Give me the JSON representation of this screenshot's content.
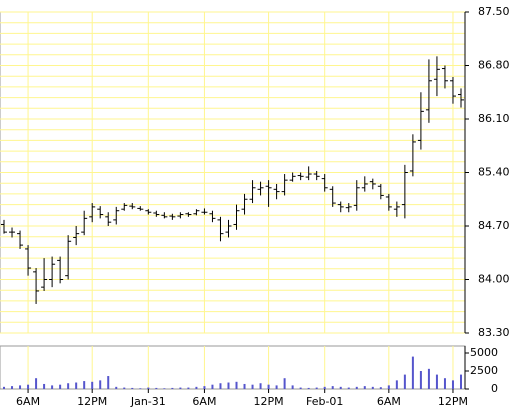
{
  "chart_data": [
    {
      "type": "ohlc",
      "x": [
        0,
        1,
        2,
        3,
        4,
        5,
        6,
        7,
        8,
        9,
        10,
        11,
        12,
        13,
        14,
        15,
        16,
        17,
        18,
        19,
        20,
        21,
        22,
        23,
        24,
        25,
        26,
        27,
        28,
        29,
        30,
        31,
        32,
        33,
        34,
        35,
        36,
        37,
        38,
        39,
        40,
        41,
        42,
        43,
        44,
        45,
        46,
        47,
        48,
        49,
        50,
        51,
        52,
        53,
        54,
        55,
        56,
        57
      ],
      "open": [
        84.72,
        84.62,
        84.6,
        84.4,
        84.1,
        83.9,
        84.0,
        84.25,
        84.05,
        84.55,
        84.62,
        84.82,
        84.92,
        84.82,
        84.78,
        84.92,
        84.96,
        84.93,
        84.9,
        84.87,
        84.84,
        84.83,
        84.83,
        84.86,
        84.86,
        84.88,
        84.86,
        84.78,
        84.62,
        84.72,
        84.92,
        85.05,
        85.18,
        85.22,
        85.18,
        85.15,
        85.3,
        85.36,
        85.34,
        85.38,
        85.32,
        85.18,
        84.98,
        84.94,
        84.97,
        85.2,
        85.28,
        85.22,
        85.08,
        84.92,
        84.98,
        85.42,
        85.82,
        86.22,
        86.62,
        86.76,
        86.6,
        86.42
      ],
      "high": [
        84.78,
        84.68,
        84.64,
        84.45,
        84.15,
        84.28,
        84.3,
        84.3,
        84.58,
        84.7,
        84.9,
        85.0,
        84.96,
        84.88,
        84.95,
        85.0,
        85.0,
        84.96,
        84.92,
        84.9,
        84.88,
        84.86,
        84.88,
        84.88,
        84.92,
        84.93,
        84.9,
        84.82,
        84.78,
        84.98,
        85.12,
        85.3,
        85.28,
        85.3,
        85.25,
        85.38,
        85.4,
        85.4,
        85.48,
        85.42,
        85.38,
        85.22,
        85.02,
        85.0,
        85.3,
        85.35,
        85.32,
        85.25,
        85.12,
        85.02,
        85.5,
        85.9,
        86.45,
        86.88,
        86.92,
        86.8,
        86.65,
        86.5
      ],
      "low": [
        84.6,
        84.55,
        84.4,
        84.05,
        83.68,
        83.85,
        83.9,
        83.95,
        84.0,
        84.45,
        84.58,
        84.75,
        84.8,
        84.7,
        84.72,
        84.9,
        84.92,
        84.9,
        84.85,
        84.82,
        84.8,
        84.78,
        84.8,
        84.82,
        84.84,
        84.85,
        84.75,
        84.5,
        84.55,
        84.65,
        84.85,
        85.0,
        85.1,
        84.95,
        85.05,
        85.1,
        85.28,
        85.3,
        85.3,
        85.3,
        85.15,
        84.95,
        84.88,
        84.88,
        84.9,
        85.15,
        85.18,
        85.05,
        84.9,
        84.82,
        84.8,
        85.35,
        85.7,
        86.05,
        86.4,
        86.5,
        86.3,
        86.25
      ],
      "close": [
        84.62,
        84.62,
        84.45,
        84.15,
        83.85,
        84.0,
        84.2,
        84.0,
        84.5,
        84.6,
        84.8,
        84.95,
        84.85,
        84.75,
        84.9,
        84.97,
        84.95,
        84.92,
        84.88,
        84.85,
        84.82,
        84.82,
        84.85,
        84.85,
        84.9,
        84.88,
        84.8,
        84.6,
        84.7,
        84.9,
        85.05,
        85.2,
        85.2,
        85.2,
        85.15,
        85.3,
        85.35,
        85.35,
        85.38,
        85.35,
        85.2,
        85.0,
        84.95,
        84.95,
        85.2,
        85.25,
        85.25,
        85.1,
        84.95,
        84.95,
        85.4,
        85.8,
        86.2,
        86.6,
        86.75,
        86.6,
        86.4,
        86.35
      ],
      "color": "#000000",
      "xlim": [
        -0.5,
        57.5
      ],
      "ylim": [
        83.3,
        87.5
      ],
      "yticks": [
        {
          "value": 83.3,
          "label": "83.30"
        },
        {
          "value": 84.0,
          "label": "84.00"
        },
        {
          "value": 84.7,
          "label": "84.70"
        },
        {
          "value": 85.4,
          "label": "85.40"
        },
        {
          "value": 86.1,
          "label": "86.10"
        },
        {
          "value": 86.8,
          "label": "86.80"
        },
        {
          "value": 87.5,
          "label": "87.50"
        }
      ],
      "minor_yticks": [
        83.44,
        83.58,
        83.72,
        83.86,
        84.14,
        84.28,
        84.42,
        84.56,
        84.84,
        84.98,
        85.12,
        85.26,
        85.54,
        85.68,
        85.82,
        85.96,
        86.24,
        86.38,
        86.52,
        86.66,
        86.94,
        87.08,
        87.22,
        87.36
      ],
      "xticks": [
        {
          "value": 3,
          "label": "6AM"
        },
        {
          "value": 11,
          "label": "12PM"
        },
        {
          "value": 18,
          "label": "Jan-31"
        },
        {
          "value": 25,
          "label": "6AM"
        },
        {
          "value": 33,
          "label": "12PM"
        },
        {
          "value": 40,
          "label": "Feb-01"
        },
        {
          "value": 48,
          "label": "6AM"
        },
        {
          "value": 56,
          "label": "12PM"
        }
      ],
      "grid": true,
      "grid_color": "#fff68f"
    },
    {
      "type": "volume",
      "values": [
        300,
        400,
        500,
        600,
        1500,
        700,
        500,
        600,
        800,
        900,
        1100,
        1000,
        1200,
        1800,
        300,
        200,
        150,
        100,
        200,
        150,
        100,
        150,
        200,
        200,
        300,
        400,
        600,
        800,
        900,
        1000,
        700,
        600,
        800,
        600,
        500,
        1500,
        500,
        200,
        150,
        200,
        300,
        400,
        300,
        200,
        300,
        400,
        300,
        250,
        500,
        1200,
        2000,
        4500,
        2500,
        2800,
        2000,
        1500,
        1200,
        2000
      ],
      "color": "#5555cc",
      "ylim": [
        0,
        5000
      ],
      "yticks": [
        0,
        2500,
        5000
      ]
    }
  ]
}
